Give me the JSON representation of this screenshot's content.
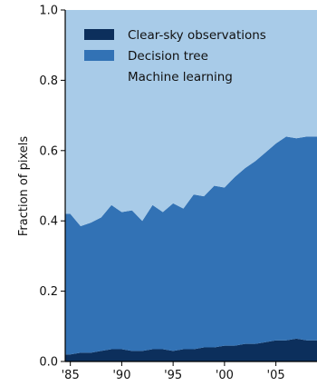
{
  "chart_data": {
    "type": "area",
    "ylabel": "Fraction of pixels",
    "xlabel": "",
    "ylim": [
      0,
      1
    ],
    "xlim": [
      1984.5,
      2009.0
    ],
    "yticks": [
      0.0,
      0.2,
      0.4,
      0.6,
      0.8,
      1.0
    ],
    "ytick_labels": [
      "0.0",
      "0.2",
      "0.4",
      "0.6",
      "0.8",
      "1.0"
    ],
    "xticks": [
      1985,
      1990,
      1995,
      2000,
      2005
    ],
    "xtick_labels": [
      "'85",
      "'90",
      "'95",
      "'00",
      "'05"
    ],
    "legend_position": "top-left",
    "stacking": "stacked, sums to 1.0",
    "series": [
      {
        "name": "Clear-sky observations",
        "color": "#0c2f5c",
        "x": [
          1985.0,
          1986.0,
          1987.0,
          1988.0,
          1989.0,
          1990.0,
          1991.0,
          1992.0,
          1993.0,
          1994.0,
          1995.0,
          1996.0,
          1997.0,
          1998.0,
          1999.0,
          2000.0,
          2001.0,
          2002.0,
          2003.0,
          2004.0,
          2005.0,
          2006.0,
          2007.0,
          2008.0
        ],
        "y": [
          0.02,
          0.025,
          0.025,
          0.03,
          0.035,
          0.035,
          0.03,
          0.03,
          0.035,
          0.035,
          0.03,
          0.035,
          0.035,
          0.04,
          0.04,
          0.045,
          0.045,
          0.05,
          0.05,
          0.055,
          0.06,
          0.06,
          0.065,
          0.06
        ]
      },
      {
        "name": "Decision tree",
        "color": "#3272b5",
        "x": [
          1985.0,
          1986.0,
          1987.0,
          1988.0,
          1989.0,
          1990.0,
          1991.0,
          1992.0,
          1993.0,
          1994.0,
          1995.0,
          1996.0,
          1997.0,
          1998.0,
          1999.0,
          2000.0,
          2001.0,
          2002.0,
          2003.0,
          2004.0,
          2005.0,
          2006.0,
          2007.0,
          2008.0
        ],
        "y": [
          0.4,
          0.36,
          0.37,
          0.38,
          0.41,
          0.39,
          0.4,
          0.37,
          0.41,
          0.39,
          0.42,
          0.4,
          0.44,
          0.43,
          0.46,
          0.45,
          0.48,
          0.5,
          0.52,
          0.54,
          0.56,
          0.58,
          0.57,
          0.58
        ]
      },
      {
        "name": "Machine learning",
        "color": "#a8cbe8",
        "x": [
          1985.0,
          1986.0,
          1987.0,
          1988.0,
          1989.0,
          1990.0,
          1991.0,
          1992.0,
          1993.0,
          1994.0,
          1995.0,
          1996.0,
          1997.0,
          1998.0,
          1999.0,
          2000.0,
          2001.0,
          2002.0,
          2003.0,
          2004.0,
          2005.0,
          2006.0,
          2007.0,
          2008.0
        ],
        "y": [
          0.58,
          0.615,
          0.605,
          0.59,
          0.555,
          0.575,
          0.57,
          0.6,
          0.555,
          0.575,
          0.55,
          0.565,
          0.525,
          0.53,
          0.5,
          0.505,
          0.475,
          0.45,
          0.43,
          0.405,
          0.38,
          0.36,
          0.365,
          0.36
        ]
      }
    ]
  }
}
